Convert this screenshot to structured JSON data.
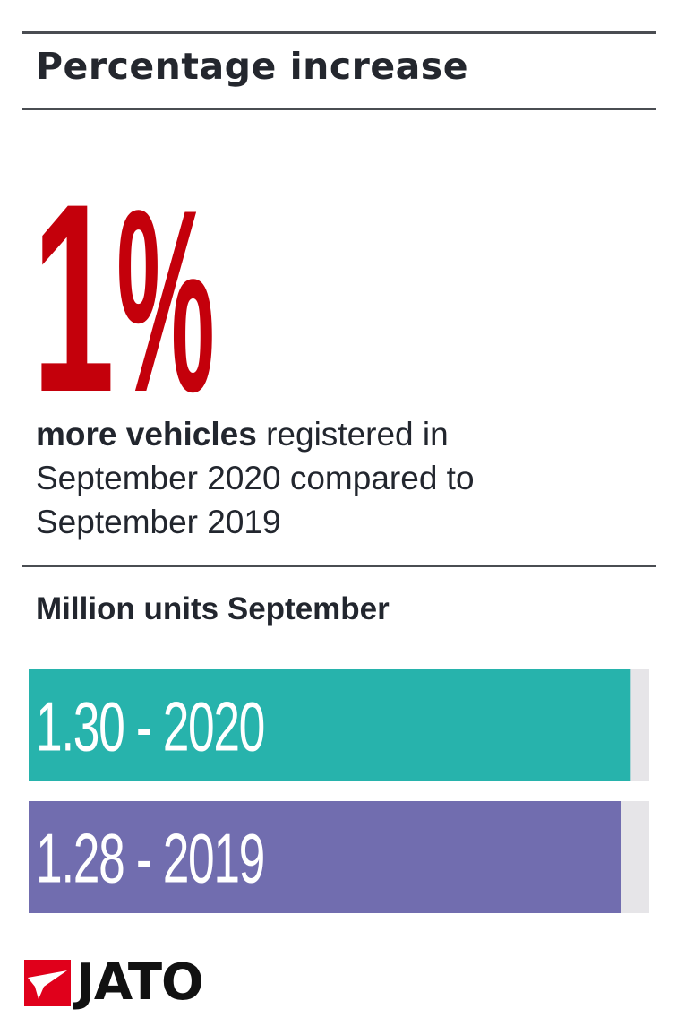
{
  "header": {
    "title": "Percentage increase"
  },
  "headline": {
    "value": "1",
    "unit": "%",
    "description_bold": "more vehicles",
    "description_rest": " registered in September 2020 compared to September 2019"
  },
  "chart_data": {
    "type": "bar",
    "title": "Million units September",
    "orientation": "horizontal",
    "xlim": [
      0,
      1.34
    ],
    "categories": [
      "2020",
      "2019"
    ],
    "values": [
      1.3,
      1.28
    ],
    "labels": [
      "1.30 - 2020",
      "1.28 - 2019"
    ],
    "colors": [
      "#27b3ac",
      "#716daf"
    ],
    "track_color": "#e6e5e8"
  },
  "logo": {
    "text": "JATO",
    "accent_color": "#e0001b"
  }
}
